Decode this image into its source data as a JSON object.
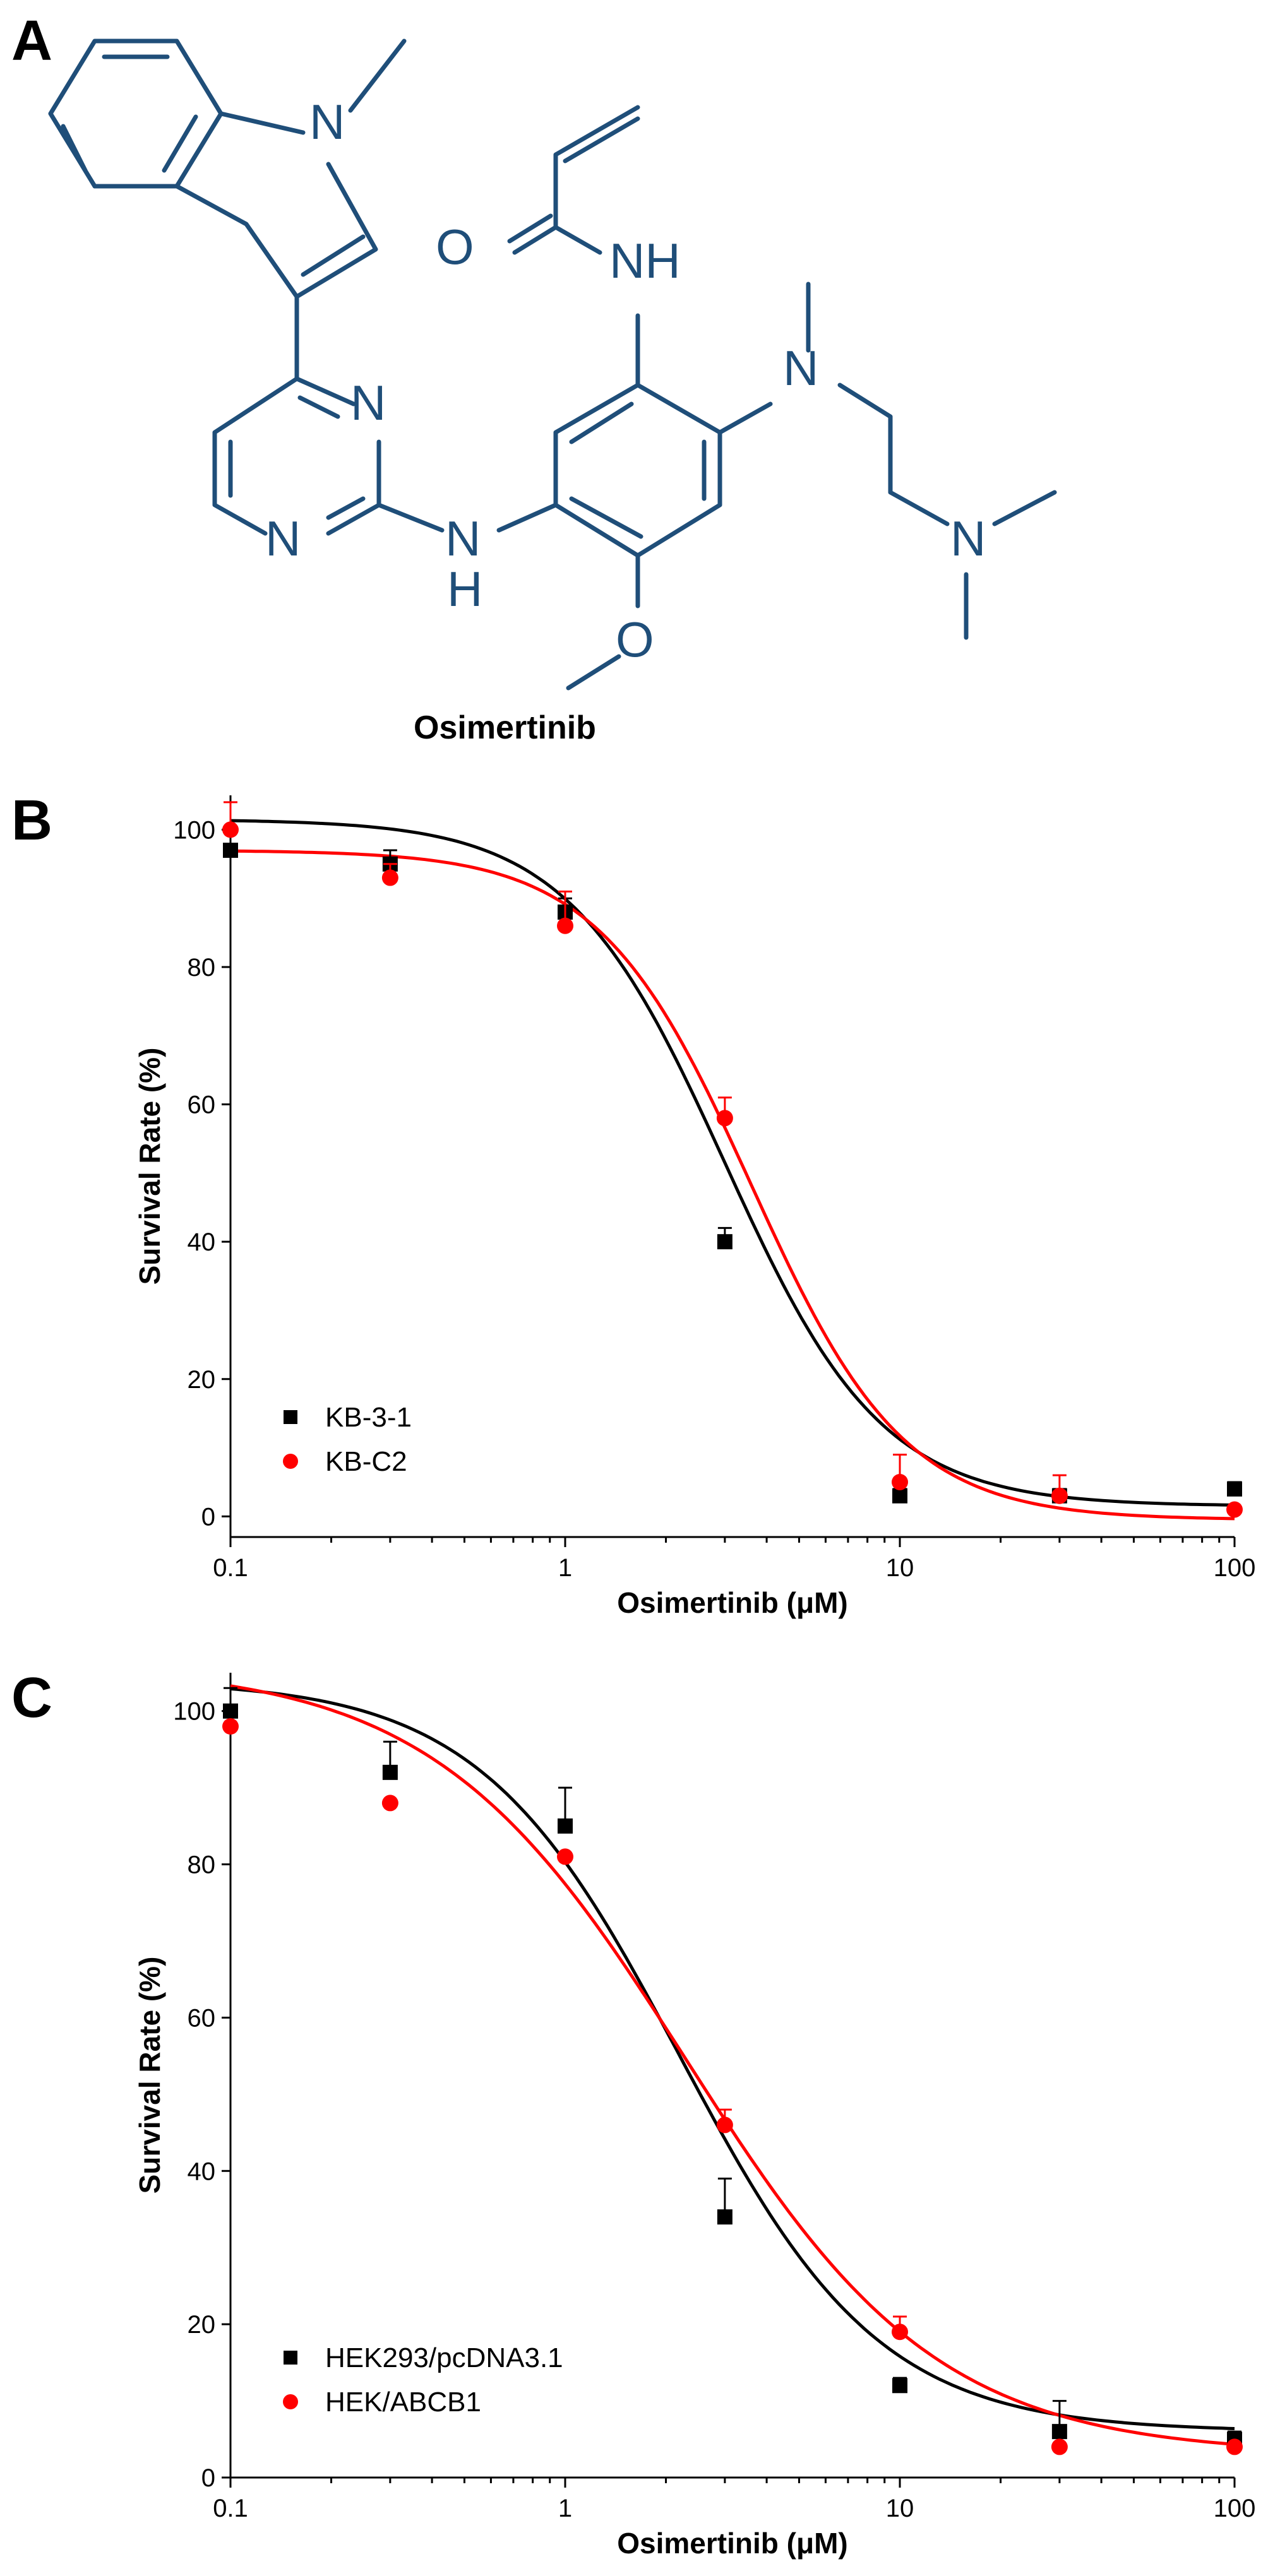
{
  "panels": {
    "a_label": "A",
    "b_label": "B",
    "c_label": "C"
  },
  "structure": {
    "compound_name": "Osimertinib",
    "atoms": {
      "n_indole": "N",
      "o_carbonyl": "O",
      "nh_amide": "NH",
      "n_pyr_top": "N",
      "n_pyr_bottom": "N",
      "n_amine_bridge": "N",
      "h_amine_bridge": "H",
      "n_methyl": "N",
      "n_dimethyl": "N",
      "o_methoxy": "O"
    }
  },
  "colors": {
    "series1": "#000000",
    "series2": "#ff0000",
    "structure": "#1f4e79"
  },
  "chart_data": [
    {
      "type": "scatter",
      "panel": "B",
      "xscale": "log",
      "xlabel": "Osimertinib (μM)",
      "ylabel": "Survival Rate (%)",
      "xlim": [
        0.1,
        100
      ],
      "ylim": [
        -3,
        105
      ],
      "xticks": [
        0.1,
        1,
        10,
        100
      ],
      "xtick_labels": [
        "0.1",
        "1",
        "10",
        "100"
      ],
      "yticks": [
        0,
        20,
        40,
        60,
        80,
        100
      ],
      "ytick_labels": [
        "0",
        "20",
        "40",
        "60",
        "80",
        "100"
      ],
      "legend_position": "lower-left",
      "x": [
        0.1,
        0.3,
        1,
        3,
        10,
        30,
        100
      ],
      "series": [
        {
          "name": "KB-3-1",
          "marker": "square",
          "color": "#000000",
          "values": [
            97,
            95,
            88,
            40,
            3,
            3,
            4
          ],
          "errors": [
            0,
            2,
            2,
            2,
            1,
            1,
            1
          ],
          "fit": {
            "top": 101.5,
            "bottom": 1.5,
            "ic50": 3.0,
            "hill": 1.85
          }
        },
        {
          "name": "KB-C2",
          "marker": "circle",
          "color": "#ff0000",
          "values": [
            100,
            93,
            86,
            58,
            5,
            3,
            1
          ],
          "errors": [
            4,
            2,
            5,
            3,
            4,
            3,
            0
          ],
          "fit": {
            "top": 97,
            "bottom": -0.5,
            "ic50": 3.6,
            "hill": 1.9
          }
        }
      ]
    },
    {
      "type": "scatter",
      "panel": "C",
      "xscale": "log",
      "xlabel": "Osimertinib (μM)",
      "ylabel": "Survival Rate (%)",
      "xlim": [
        0.1,
        100
      ],
      "ylim": [
        0,
        105
      ],
      "xticks": [
        0.1,
        1,
        10,
        100
      ],
      "xtick_labels": [
        "0.1",
        "1",
        "10",
        "100"
      ],
      "yticks": [
        0,
        20,
        40,
        60,
        80,
        100
      ],
      "ytick_labels": [
        "0",
        "20",
        "40",
        "60",
        "80",
        "100"
      ],
      "legend_position": "lower-left",
      "x": [
        0.1,
        0.3,
        1,
        3,
        10,
        30,
        100
      ],
      "series": [
        {
          "name": "HEK293/pcDNA3.1",
          "marker": "square",
          "color": "#000000",
          "values": [
            100,
            92,
            85,
            34,
            12,
            6,
            5
          ],
          "errors": [
            3,
            4,
            5,
            5,
            1,
            4,
            1
          ],
          "fit": {
            "top": 104,
            "bottom": 6,
            "ic50": 2.2,
            "hill": 1.45
          }
        },
        {
          "name": "HEK/ABCB1",
          "marker": "circle",
          "color": "#ff0000",
          "values": [
            98,
            88,
            81,
            46,
            19,
            4,
            4
          ],
          "errors": [
            0,
            0,
            0,
            2,
            2,
            0,
            0
          ],
          "fit": {
            "top": 106,
            "bottom": 3,
            "ic50": 2.3,
            "hill": 1.15
          }
        }
      ]
    }
  ]
}
